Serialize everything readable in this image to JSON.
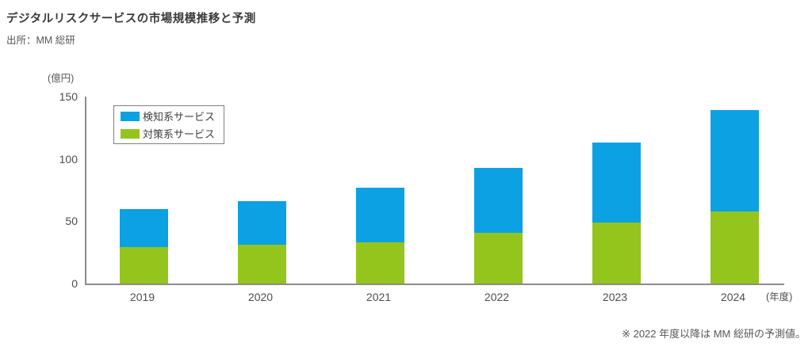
{
  "title": "デジタルリスクサービスの市場規模推移と予測",
  "source": "出所：MM 総研",
  "footnote": "※ 2022 年度以降は MM 総研の予測値。",
  "colors": {
    "detection_blue": "#0ba1e2",
    "countermeasure_green": "#94c51c",
    "axis_gray": "#8c8c8c",
    "text_dark": "#3a3a3a",
    "text_gray": "#595757"
  },
  "chart_data": {
    "type": "bar",
    "stacked": true,
    "title": "デジタルリスクサービスの市場規模推移と予測",
    "unit_label": "(億円)",
    "xlabel_suffix": "(年度)",
    "categories": [
      "2019",
      "2020",
      "2021",
      "2022",
      "2023",
      "2024"
    ],
    "series": [
      {
        "name": "検知系サービス",
        "color": "#0ba1e2",
        "stack": "top",
        "values": [
          31,
          35,
          44,
          52,
          64,
          81
        ]
      },
      {
        "name": "対策系サービス",
        "color": "#94c51c",
        "stack": "bottom",
        "values": [
          29,
          31,
          33,
          41,
          49,
          58
        ]
      }
    ],
    "totals": [
      60,
      66,
      77,
      93,
      113,
      139
    ],
    "ylabel": "",
    "xlabel": "",
    "ylim": [
      0,
      150
    ],
    "yticks": [
      0,
      50,
      100,
      150
    ],
    "grid": false,
    "legend_position": "top-left",
    "note": "2022年度以降は予測値"
  }
}
